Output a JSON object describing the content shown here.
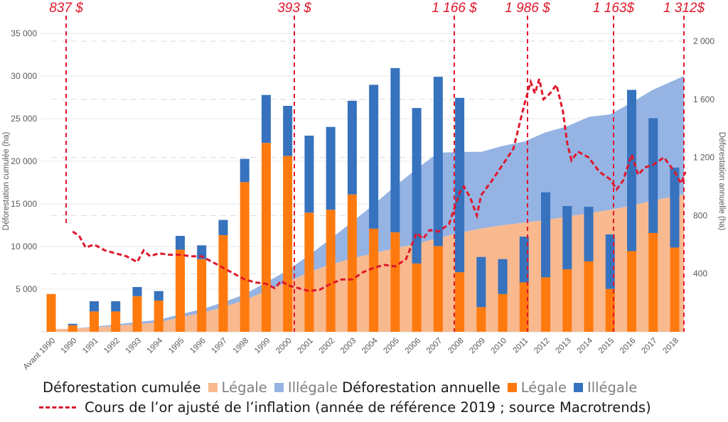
{
  "chart_data": {
    "type": "bar",
    "title": "",
    "categories": [
      "Avant 1990",
      "1990",
      "1991",
      "1992",
      "1993",
      "1994",
      "1995",
      "1996",
      "1997",
      "1998",
      "1999",
      "2000",
      "2001",
      "2002",
      "2003",
      "2004",
      "2005",
      "2006",
      "2007",
      "2008",
      "2009",
      "2010",
      "2011",
      "2012",
      "2013",
      "2014",
      "2015",
      "2016",
      "2017",
      "2018"
    ],
    "left_axis": {
      "label": "Déforestation cumulée (ha)",
      "range": [
        0,
        35000
      ],
      "ticks": [
        5000,
        10000,
        15000,
        20000,
        25000,
        30000,
        35000
      ],
      "tick_labels": [
        "5 000",
        "10 000",
        "15 000",
        "20 000",
        "25 000",
        "30 000",
        "35 000"
      ]
    },
    "right_axis": {
      "label": "Déforestation annuelle (ha)",
      "range": [
        0,
        2000
      ],
      "ticks": [
        400,
        800,
        1200,
        1600,
        2000
      ],
      "tick_labels": [
        "400",
        "800",
        "1 200",
        "1 600",
        "2 000"
      ]
    },
    "series": [
      {
        "name": "Déforestation cumulée — Légale",
        "type": "area",
        "axis": "left",
        "color": "#f9b98f",
        "values": [
          300,
          350,
          500,
          700,
          900,
          1100,
          1700,
          2200,
          2900,
          3700,
          4800,
          5800,
          7000,
          7900,
          8600,
          9200,
          9800,
          10300,
          11000,
          11600,
          12100,
          12500,
          12800,
          13100,
          13500,
          13900,
          14300,
          14800,
          15400,
          16100
        ]
      },
      {
        "name": "Déforestation cumulée — Illégale",
        "type": "area",
        "axis": "left",
        "color": "#95b3e3",
        "values": [
          0,
          20,
          100,
          150,
          250,
          300,
          350,
          450,
          550,
          700,
          1000,
          1400,
          2000,
          3000,
          4300,
          5700,
          7300,
          8800,
          10000,
          9500,
          9000,
          9300,
          9500,
          10300,
          10600,
          11300,
          11200,
          12100,
          13000,
          13900
        ]
      },
      {
        "name": "Déforestation annuelle — Légale",
        "type": "bar",
        "axis": "right",
        "color": "#ff7a0e",
        "values": [
          260,
          45,
          140,
          140,
          245,
          215,
          565,
          500,
          665,
          1030,
          1300,
          1210,
          820,
          840,
          945,
          710,
          685,
          470,
          590,
          410,
          170,
          260,
          340,
          375,
          430,
          485,
          295,
          555,
          680,
          580
        ]
      },
      {
        "name": "Déforestation annuelle — Illégale",
        "type": "bar",
        "axis": "right",
        "color": "#3672be",
        "values": [
          0,
          10,
          70,
          70,
          63,
          65,
          95,
          95,
          105,
          160,
          330,
          345,
          530,
          570,
          645,
          990,
          1130,
          1070,
          1165,
          1200,
          345,
          240,
          315,
          585,
          435,
          375,
          375,
          1110,
          790,
          550
        ]
      },
      {
        "name": "Cours de l'or ajusté de l'inflation",
        "type": "line",
        "axis": "right",
        "color": "#e0172b",
        "style": "dashed",
        "x": [
          1990.0,
          1990.3,
          1990.6,
          1991.0,
          1991.5,
          1992.0,
          1992.5,
          1993.0,
          1993.3,
          1993.6,
          1994.0,
          1994.5,
          1995.0,
          1995.5,
          1996.0,
          1996.5,
          1997.0,
          1997.5,
          1998.0,
          1998.5,
          1999.0,
          1999.4,
          1999.7,
          2000.0,
          2000.5,
          2001.0,
          2001.5,
          2002.0,
          2002.5,
          2003.0,
          2003.5,
          2004.0,
          2004.5,
          2005.0,
          2005.5,
          2006.0,
          2006.3,
          2006.6,
          2007.0,
          2007.5,
          2008.0,
          2008.2,
          2008.5,
          2008.8,
          2009.0,
          2009.5,
          2010.0,
          2010.5,
          2011.0,
          2011.3,
          2011.5,
          2011.7,
          2011.9,
          2012.2,
          2012.5,
          2012.8,
          2013.0,
          2013.2,
          2013.5,
          2014.0,
          2014.5,
          2015.0,
          2015.3,
          2015.6,
          2016.0,
          2016.3,
          2016.6,
          2017.0,
          2017.5,
          2018.0,
          2018.3,
          2018.5
        ],
        "values": [
          690,
          660,
          580,
          600,
          560,
          540,
          520,
          480,
          560,
          520,
          540,
          530,
          530,
          520,
          520,
          480,
          440,
          400,
          360,
          340,
          330,
          300,
          350,
          320,
          300,
          280,
          290,
          330,
          360,
          360,
          410,
          440,
          460,
          450,
          500,
          680,
          640,
          700,
          690,
          740,
          960,
          1000,
          920,
          800,
          940,
          1040,
          1150,
          1260,
          1560,
          1720,
          1640,
          1740,
          1600,
          1640,
          1700,
          1520,
          1300,
          1180,
          1240,
          1200,
          1100,
          1050,
          980,
          1040,
          1220,
          1080,
          1130,
          1150,
          1200,
          1100,
          1020,
          1100
        ]
      }
    ],
    "annotations": [
      {
        "label": "837 $",
        "year": 1990
      },
      {
        "label": "393 $",
        "year": 2000
      },
      {
        "label": "1 166 $",
        "year": 2008
      },
      {
        "label": "1 986 $",
        "year": 2011
      },
      {
        "label": "1 163$",
        "year": 2015
      },
      {
        "label": "1 312$",
        "year": 2018
      }
    ],
    "grid": true,
    "legend_position": "bottom"
  },
  "legend": {
    "cumul_title": "Déforestation cumulée",
    "annual_title": "Déforestation annuelle",
    "legal": "Légale",
    "illegal": "Illégale",
    "gold_line": "Cours de l’or ajusté de l’inflation (année de référence 2019 ; source Macrotrends)"
  }
}
